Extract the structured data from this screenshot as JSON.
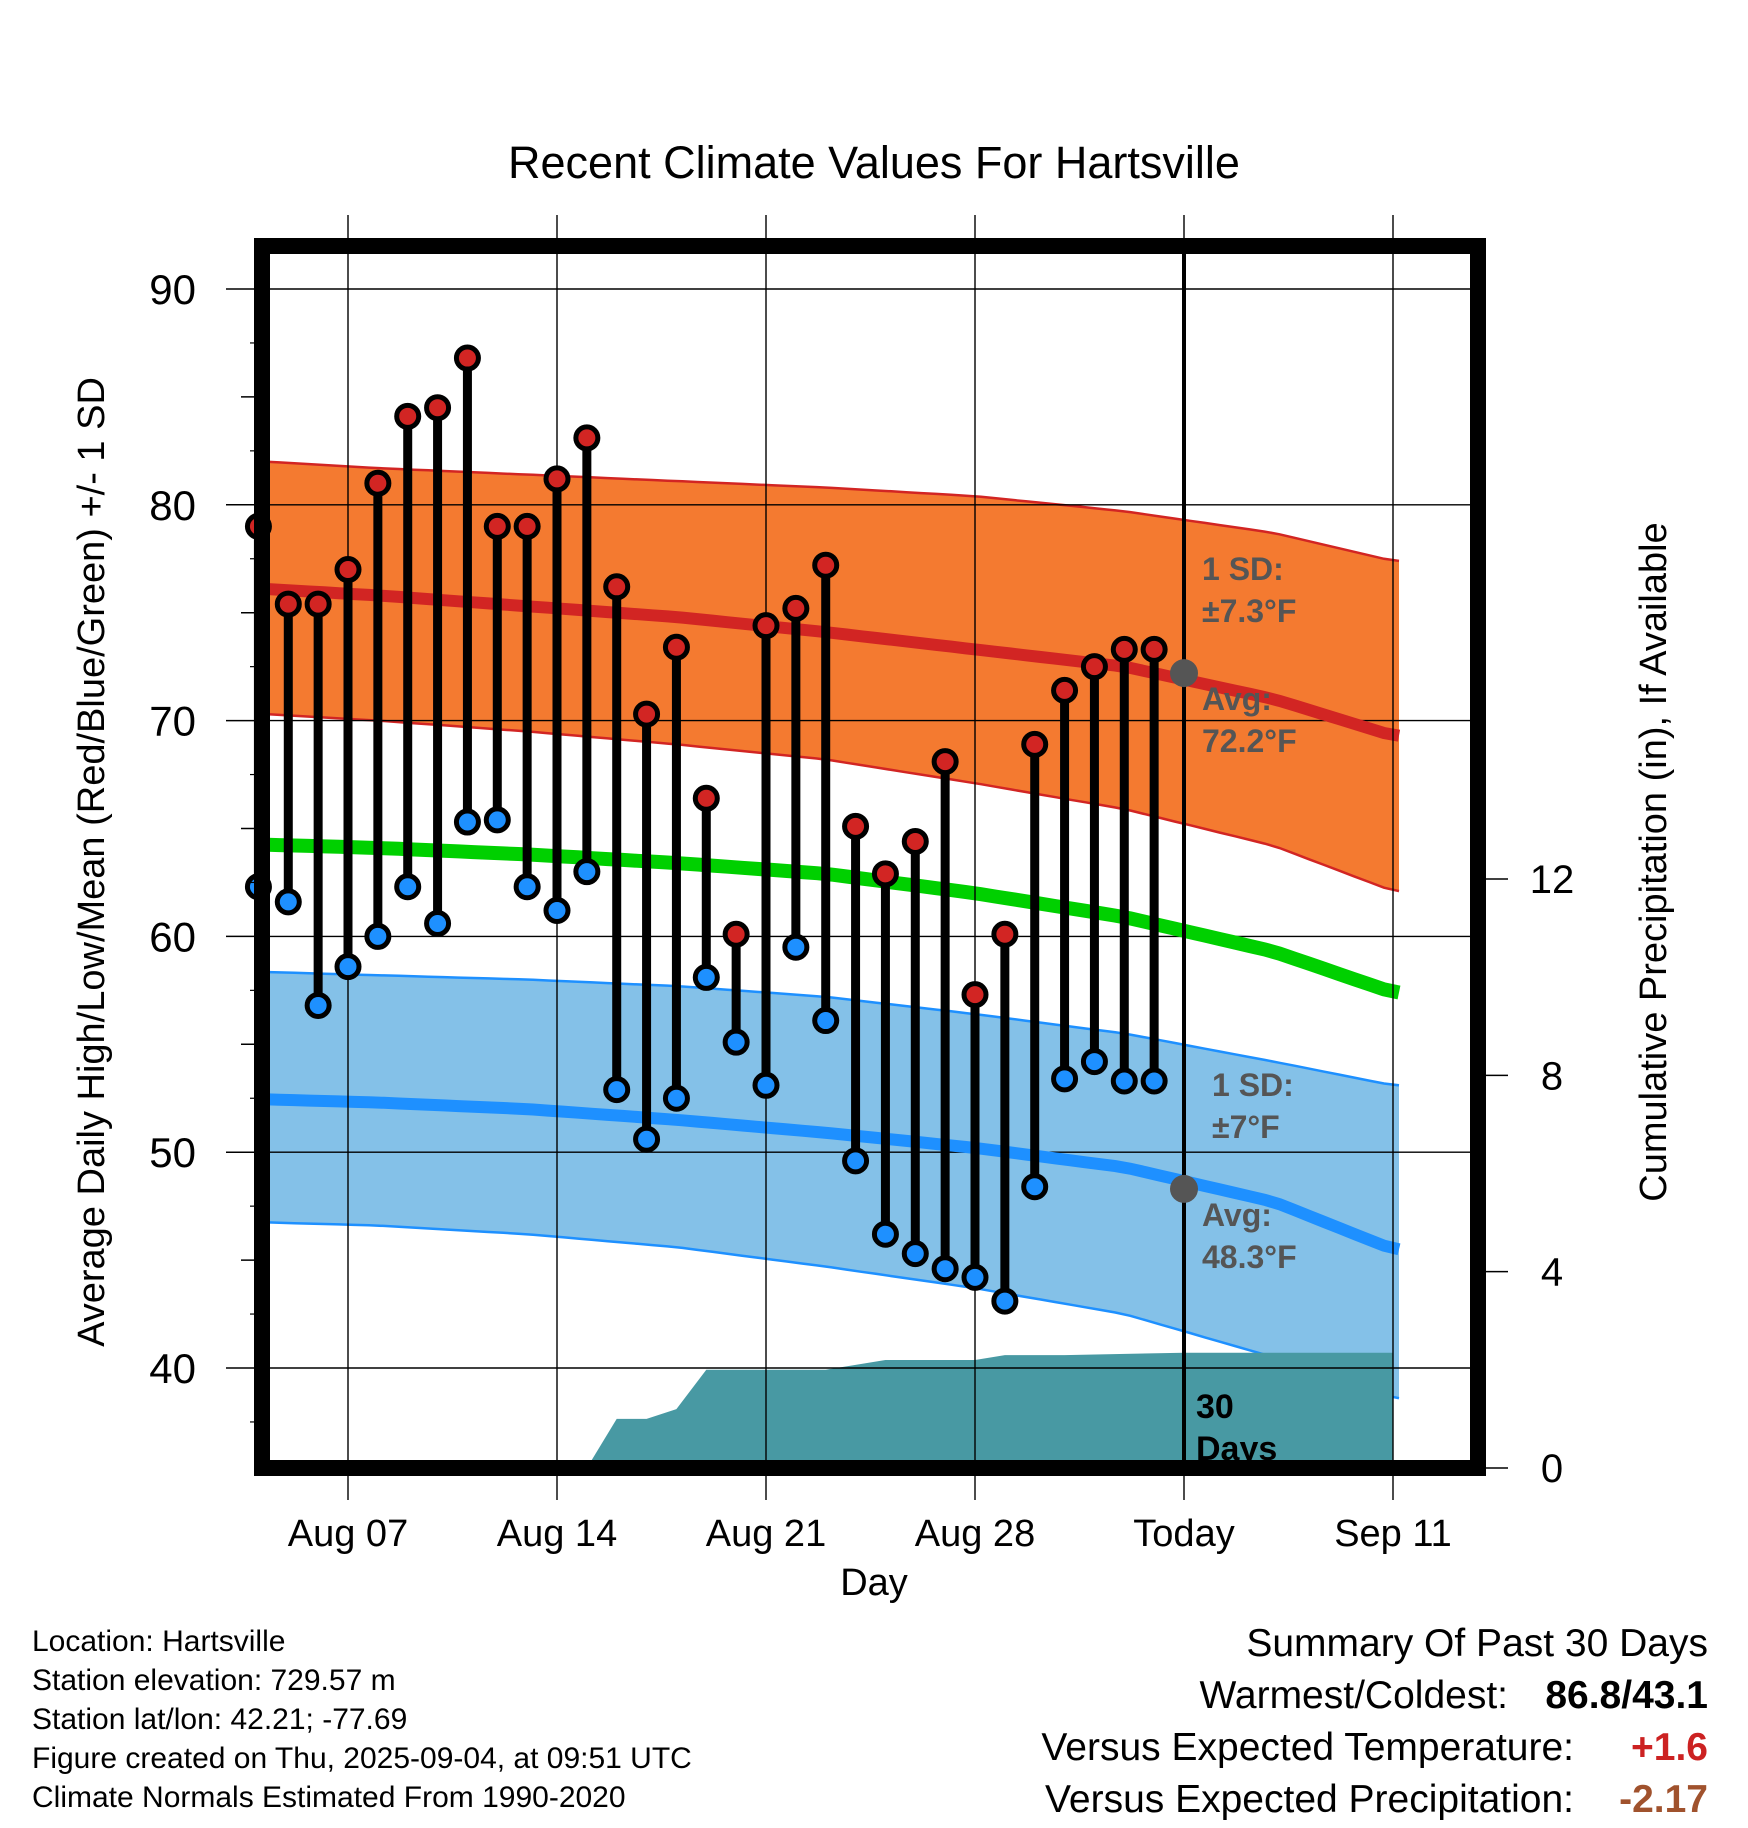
{
  "chart_data": {
    "type": "line",
    "title": "Recent Climate Values For Hartsville",
    "xlabel": "Day",
    "ylabel": "Average Daily High/Low/Mean (Red/Blue/Green) +/- 1 SD",
    "y2label": "Cumulative Precipitation (in), If Available",
    "ylim": [
      35.5,
      90
    ],
    "y2lim": [
      0,
      15
    ],
    "x_day_range": [
      -0.3,
      39.3
    ],
    "x_tick_days": [
      4,
      11,
      18,
      25,
      32,
      39
    ],
    "x_tick_labels": [
      "Aug 07",
      "Aug 14",
      "Aug 21",
      "Aug 28",
      "Today",
      "Sep 11"
    ],
    "y_ticks": [
      40,
      50,
      60,
      70,
      80,
      90
    ],
    "y2_ticks": [
      0,
      4,
      8,
      12
    ],
    "today_day": 32,
    "grid": true,
    "today_marker_label": "30 Days",
    "observed": {
      "days": [
        1,
        2,
        3,
        4,
        5,
        6,
        7,
        8,
        9,
        10,
        11,
        12,
        13,
        14,
        15,
        16,
        17,
        18,
        19,
        20,
        21,
        22,
        23,
        24,
        25,
        26,
        27,
        28,
        29,
        30,
        31
      ],
      "highs": [
        79.0,
        75.4,
        75.4,
        77.0,
        81.0,
        84.1,
        84.5,
        86.8,
        79.0,
        79.0,
        81.2,
        83.1,
        76.2,
        70.3,
        73.4,
        66.4,
        60.1,
        74.4,
        75.2,
        77.2,
        65.1,
        62.9,
        64.4,
        68.1,
        57.3,
        60.1,
        68.9,
        71.4,
        72.5,
        73.3,
        73.3
      ],
      "lows": [
        62.3,
        61.6,
        56.8,
        58.6,
        60.0,
        62.3,
        60.6,
        65.3,
        65.4,
        62.3,
        61.2,
        63.0,
        52.9,
        50.6,
        52.5,
        58.1,
        55.1,
        53.1,
        59.5,
        56.1,
        49.6,
        46.2,
        45.3,
        44.6,
        44.2,
        43.1,
        48.4,
        53.4,
        54.2,
        53.3,
        53.3
      ]
    },
    "normals": {
      "days": [
        0,
        5,
        10,
        15,
        20,
        25,
        30,
        35,
        39
      ],
      "avg_high": [
        76.2,
        75.8,
        75.3,
        74.8,
        74.1,
        73.3,
        72.5,
        71.0,
        69.3
      ],
      "high_sd_upper": [
        82.1,
        81.7,
        81.4,
        81.1,
        80.8,
        80.4,
        79.7,
        78.7,
        77.4
      ],
      "high_sd_lower": [
        70.4,
        70.0,
        69.5,
        68.9,
        68.2,
        67.1,
        65.9,
        64.2,
        62.1
      ],
      "avg_mean": [
        64.3,
        64.1,
        63.8,
        63.4,
        62.9,
        62.0,
        60.9,
        59.3,
        57.4
      ],
      "avg_low": [
        52.5,
        52.3,
        52.0,
        51.5,
        50.9,
        50.2,
        49.3,
        47.7,
        45.5
      ],
      "low_sd_upper": [
        58.4,
        58.2,
        58.0,
        57.7,
        57.2,
        56.4,
        55.5,
        54.2,
        53.1
      ],
      "low_sd_lower": [
        46.8,
        46.6,
        46.2,
        45.6,
        44.7,
        43.7,
        42.5,
        40.5,
        38.6
      ]
    },
    "precipitation": {
      "days": [
        12,
        13,
        14,
        15,
        16,
        18,
        20,
        21,
        22,
        25,
        26,
        28,
        32,
        39
      ],
      "cumulative_in": [
        0,
        1.0,
        1.0,
        1.2,
        2.0,
        2.0,
        2.0,
        2.1,
        2.2,
        2.2,
        2.3,
        2.3,
        2.35,
        2.35
      ]
    },
    "today_annotations": {
      "high_sd_label": "1 SD:",
      "high_sd_value": "±7.3°F",
      "high_avg_label": "Avg:",
      "high_avg_value": "72.2°F",
      "low_sd_label": "1 SD:",
      "low_sd_value": "±7°F",
      "low_avg_label": "Avg:",
      "low_avg_value": "48.3°F",
      "today_avg_high": 72.2,
      "today_avg_low": 48.3
    }
  },
  "colors": {
    "high_band": "#F47A30",
    "high_line": "#D22523",
    "low_band": "#84C1E8",
    "low_line": "#1E90FF",
    "mean_line": "#00D000",
    "precip": "#4899A3",
    "high_marker": "#D22523",
    "low_marker": "#1E90FF",
    "annotation": "#555555",
    "warm": "#CC2222",
    "dry": "#A0522D"
  },
  "info": {
    "location": "Location: Hartsville",
    "elevation": "Station elevation: 729.57 m",
    "latlon": "Station lat/lon: 42.21; -77.69",
    "created": "Figure created on Thu, 2025-09-04, at 09:51 UTC",
    "normals": "Climate Normals Estimated From 1990-2020"
  },
  "summary": {
    "title": "Summary Of Past 30 Days",
    "warm_cold_label": "Warmest/Coldest:",
    "warm_cold_value": "86.8/43.1",
    "temp_label": "Versus Expected Temperature:",
    "temp_value": "+1.6",
    "precip_label": "Versus Expected Precipitation:",
    "precip_value": "-2.17"
  }
}
